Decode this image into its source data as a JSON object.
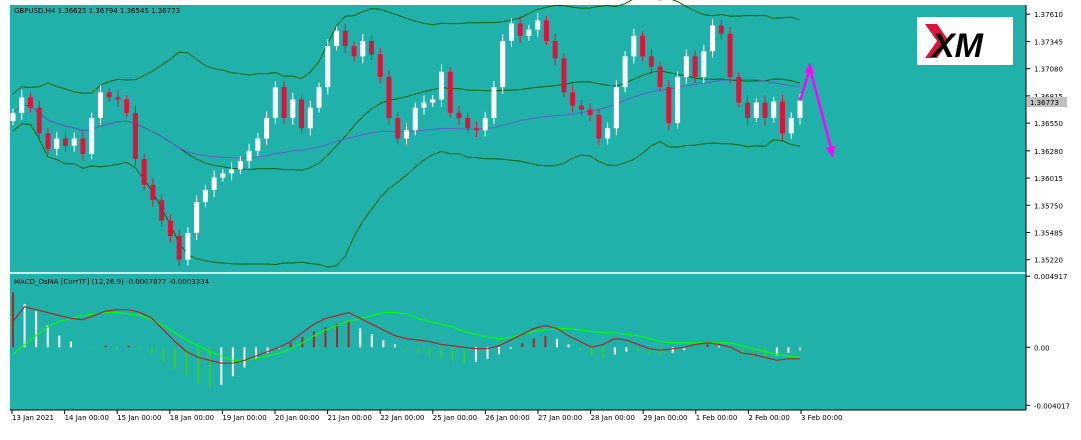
{
  "header": {
    "symbol_line": "GBPUSD,H4  1.36625 1.36794 1.36545 1.36773"
  },
  "macd": {
    "label": "MACD_OsMA [CurrTF] (12,26,9) -0.0007877 -0.0003334"
  },
  "colors": {
    "background": "#20b2aa",
    "bull_candle": "#ffffff",
    "bear_candle": "#dc143c",
    "bollinger": "#006400",
    "ma": "#6a5acd",
    "arrow": "#ff00ff",
    "macd_line": "#b22222",
    "signal_line": "#00ff00",
    "hist_pos": "#b22222",
    "hist_neg": "#32cd32",
    "hist_white": "#ffffff"
  },
  "logo": {
    "text": "XM"
  },
  "chart_data": [
    {
      "type": "candlestick",
      "title": "GBPUSD,H4",
      "price_ticks": [
        "1.37610",
        "1.37345",
        "1.37080",
        "1.36815",
        "1.36550",
        "1.36280",
        "1.36015",
        "1.35750",
        "1.35485",
        "1.35220"
      ],
      "ylim": [
        1.351,
        1.377
      ],
      "current_price": "1.36773",
      "x_labels": [
        "13 Jan 2021",
        "14 Jan 00:00",
        "15 Jan 00:00",
        "18 Jan 00:00",
        "19 Jan 00:00",
        "20 Jan 00:00",
        "21 Jan 00:00",
        "22 Jan 00:00",
        "25 Jan 00:00",
        "26 Jan 00:00",
        "27 Jan 00:00",
        "28 Jan 00:00",
        "29 Jan 00:00",
        "1 Feb 00:00",
        "2 Feb 00:00",
        "3 Feb 00:00"
      ],
      "candles_close": [
        1.3665,
        1.368,
        1.367,
        1.3645,
        1.363,
        1.364,
        1.3633,
        1.364,
        1.3625,
        1.366,
        1.3685,
        1.368,
        1.3678,
        1.3665,
        1.362,
        1.3595,
        1.358,
        1.356,
        1.3545,
        1.3522,
        1.3548,
        1.3578,
        1.359,
        1.3602,
        1.3606,
        1.361,
        1.3618,
        1.3628,
        1.364,
        1.366,
        1.369,
        1.366,
        1.3678,
        1.365,
        1.367,
        1.369,
        1.373,
        1.3745,
        1.373,
        1.372,
        1.3735,
        1.3722,
        1.37,
        1.366,
        1.364,
        1.3648,
        1.367,
        1.3675,
        1.3678,
        1.3705,
        1.3665,
        1.366,
        1.365,
        1.3648,
        1.366,
        1.369,
        1.3735,
        1.3752,
        1.374,
        1.3746,
        1.3755,
        1.3735,
        1.3718,
        1.3685,
        1.3672,
        1.3668,
        1.3663,
        1.364,
        1.365,
        1.369,
        1.372,
        1.374,
        1.372,
        1.371,
        1.369,
        1.3655,
        1.37,
        1.372,
        1.37,
        1.3725,
        1.375,
        1.3742,
        1.37,
        1.3675,
        1.366,
        1.3675,
        1.366,
        1.3676,
        1.3645,
        1.366,
        1.3677
      ],
      "arrows": [
        {
          "direction": "up",
          "from": 1.3677,
          "to": 1.3708
        },
        {
          "direction": "down",
          "from": 1.3708,
          "to": 1.3627
        }
      ]
    },
    {
      "type": "histogram+line",
      "title": "MACD_OsMA [CurrTF] (12,26,9)",
      "value_ticks": [
        "0.004917",
        "0.00",
        "-0.004017"
      ],
      "ylim": [
        -0.0042,
        0.005
      ],
      "series": [
        {
          "name": "MACD",
          "values": [
            0.0018,
            0.0028,
            0.0026,
            0.0024,
            0.0022,
            0.002,
            0.0019,
            0.0022,
            0.0025,
            0.0026,
            0.0026,
            0.0024,
            0.002,
            0.0012,
            0.0004,
            -0.0003,
            -0.0007,
            -0.0009,
            -0.0011,
            -0.0011,
            -0.0009,
            -0.0006,
            -0.0003,
            0.0,
            0.0004,
            0.001,
            0.0016,
            0.002,
            0.0022,
            0.0024,
            0.002,
            0.0016,
            0.0012,
            0.0008,
            0.0006,
            0.0005,
            0.0004,
            0.0002,
            0.0001,
            0.0,
            -0.0001,
            -0.0001,
            0.0001,
            0.0005,
            0.0009,
            0.0013,
            0.0015,
            0.0013,
            0.0008,
            0.0004,
            0.0,
            0.0002,
            0.0006,
            0.0005,
            0.0002,
            -0.0001,
            -0.0002,
            -0.0001,
            0.0,
            0.0002,
            0.0003,
            0.0002,
            0.0,
            -0.0004,
            -0.0005,
            -0.0007,
            -0.0009,
            -0.0008,
            -0.0008
          ]
        },
        {
          "name": "Signal",
          "values": [
            -0.0005,
            0.0002,
            0.0008,
            0.0014,
            0.0018,
            0.002,
            0.0022,
            0.0023,
            0.0024,
            0.0024,
            0.0023,
            0.0022,
            0.0019,
            0.0015,
            0.001,
            0.0005,
            0.0001,
            -0.0003,
            -0.0006,
            -0.0009,
            -0.0009,
            -0.0008,
            -0.0006,
            -0.0004,
            -0.0001,
            0.0003,
            0.0008,
            0.0012,
            0.0015,
            0.0018,
            0.002,
            0.0022,
            0.0024,
            0.0024,
            0.0023,
            0.002,
            0.0018,
            0.0016,
            0.0014,
            0.0011,
            0.0009,
            0.0007,
            0.0006,
            0.0007,
            0.0009,
            0.0011,
            0.0012,
            0.0013,
            0.0013,
            0.0012,
            0.0011,
            0.001,
            0.001,
            0.0009,
            0.0008,
            0.0006,
            0.0004,
            0.0003,
            0.0003,
            0.0003,
            0.0003,
            0.0003,
            0.0003,
            0.0001,
            -0.0001,
            -0.0003,
            -0.0005,
            -0.0006,
            -0.0007
          ]
        },
        {
          "name": "OsMA",
          "values": [
            0.0038,
            0.003,
            0.0025,
            0.0015,
            0.0008,
            0.0004,
            0.0,
            -0.0001,
            0.0001,
            -0.0002,
            0.0001,
            -0.0001,
            -0.0004,
            -0.001,
            -0.0015,
            -0.002,
            -0.0025,
            -0.0028,
            -0.0026,
            -0.002,
            -0.0014,
            -0.0008,
            -0.0004,
            -0.0001,
            0.0003,
            0.0007,
            0.0011,
            0.0014,
            0.0016,
            0.0018,
            0.0013,
            0.0009,
            0.0005,
            0.0002,
            -0.0002,
            -0.0004,
            -0.0006,
            -0.0008,
            -0.001,
            -0.0011,
            -0.001,
            -0.0008,
            -0.0005,
            -0.0001,
            0.0003,
            0.0006,
            0.0008,
            0.0006,
            0.0002,
            -0.0002,
            -0.0006,
            -0.0008,
            -0.0005,
            -0.0003,
            -0.0003,
            -0.0005,
            -0.0006,
            -0.0004,
            -0.0002,
            0.0,
            0.0002,
            0.0001,
            -0.0002,
            -0.0006,
            -0.0007,
            -0.0008,
            -0.0006,
            -0.0004,
            -0.0002
          ]
        }
      ]
    }
  ]
}
